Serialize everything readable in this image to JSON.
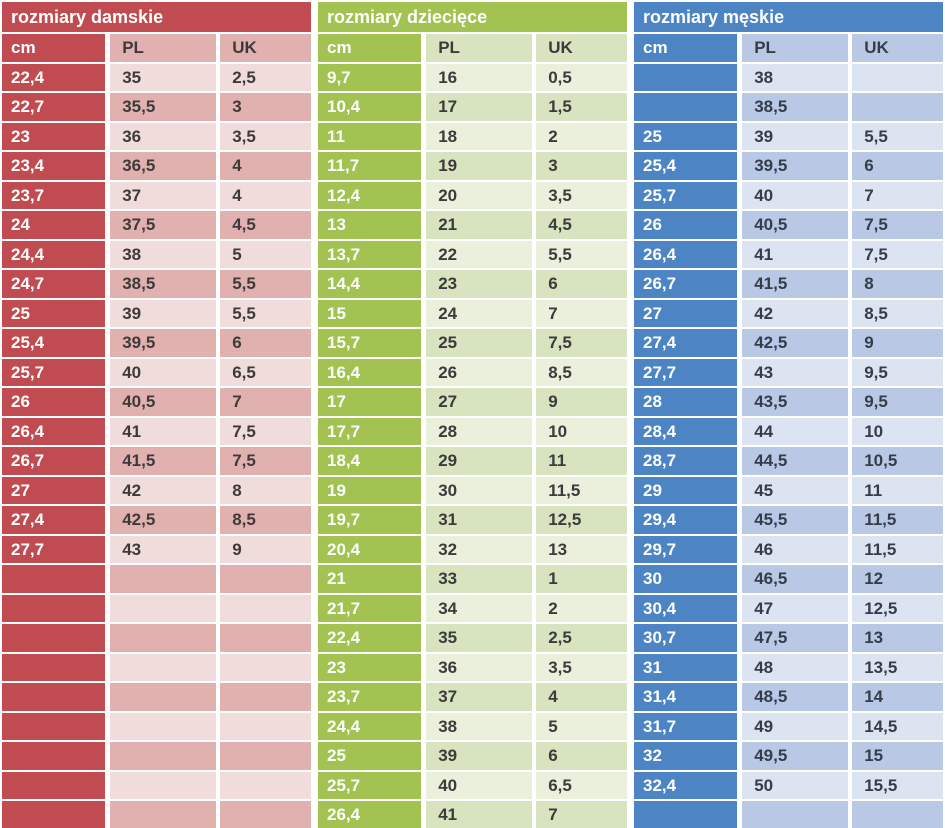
{
  "chart_data": [
    {
      "type": "table",
      "title": "rozmiary damskie",
      "columns": [
        "cm",
        "PL",
        "UK"
      ],
      "theme": {
        "strong": "#c04b51",
        "row_light": "#f0dcda",
        "row_dark": "#e1b1af",
        "on_strong": "#ffffff",
        "value_text": "#3e3a3b"
      },
      "rows": [
        [
          "22,4",
          "35",
          "2,5"
        ],
        [
          "22,7",
          "35,5",
          "3"
        ],
        [
          "23",
          "36",
          "3,5"
        ],
        [
          "23,4",
          "36,5",
          "4"
        ],
        [
          "23,7",
          "37",
          "4"
        ],
        [
          "24",
          "37,5",
          "4,5"
        ],
        [
          "24,4",
          "38",
          "5"
        ],
        [
          "24,7",
          "38,5",
          "5,5"
        ],
        [
          "25",
          "39",
          "5,5"
        ],
        [
          "25,4",
          "39,5",
          "6"
        ],
        [
          "25,7",
          "40",
          "6,5"
        ],
        [
          "26",
          "40,5",
          "7"
        ],
        [
          "26,4",
          "41",
          "7,5"
        ],
        [
          "26,7",
          "41,5",
          "7,5"
        ],
        [
          "27",
          "42",
          "8"
        ],
        [
          "27,4",
          "42,5",
          "8,5"
        ],
        [
          "27,7",
          "43",
          "9"
        ],
        [
          "",
          "",
          ""
        ],
        [
          "",
          "",
          ""
        ],
        [
          "",
          "",
          ""
        ],
        [
          "",
          "",
          ""
        ],
        [
          "",
          "",
          ""
        ],
        [
          "",
          "",
          ""
        ],
        [
          "",
          "",
          ""
        ],
        [
          "",
          "",
          ""
        ],
        [
          "",
          "",
          ""
        ]
      ]
    },
    {
      "type": "table",
      "title": "rozmiary dziecięce",
      "columns": [
        "cm",
        "PL",
        "UK"
      ],
      "theme": {
        "strong": "#a2c252",
        "row_light": "#eaf0dc",
        "row_dark": "#d8e4c0",
        "on_strong": "#ffffff",
        "value_text": "#3e3a3b"
      },
      "rows": [
        [
          "9,7",
          "16",
          "0,5"
        ],
        [
          "10,4",
          "17",
          "1,5"
        ],
        [
          "11",
          "18",
          "2"
        ],
        [
          "11,7",
          "19",
          "3"
        ],
        [
          "12,4",
          "20",
          "3,5"
        ],
        [
          "13",
          "21",
          "4,5"
        ],
        [
          "13,7",
          "22",
          "5,5"
        ],
        [
          "14,4",
          "23",
          "6"
        ],
        [
          "15",
          "24",
          "7"
        ],
        [
          "15,7",
          "25",
          "7,5"
        ],
        [
          "16,4",
          "26",
          "8,5"
        ],
        [
          "17",
          "27",
          "9"
        ],
        [
          "17,7",
          "28",
          "10"
        ],
        [
          "18,4",
          "29",
          "11"
        ],
        [
          "19",
          "30",
          "11,5"
        ],
        [
          "19,7",
          "31",
          "12,5"
        ],
        [
          "20,4",
          "32",
          "13"
        ],
        [
          "21",
          "33",
          "1"
        ],
        [
          "21,7",
          "34",
          "2"
        ],
        [
          "22,4",
          "35",
          "2,5"
        ],
        [
          "23",
          "36",
          "3,5"
        ],
        [
          "23,7",
          "37",
          "4"
        ],
        [
          "24,4",
          "38",
          "5"
        ],
        [
          "25",
          "39",
          "6"
        ],
        [
          "25,7",
          "40",
          "6,5"
        ],
        [
          "26,4",
          "41",
          "7"
        ]
      ]
    },
    {
      "type": "table",
      "title": "rozmiary męskie",
      "columns": [
        "cm",
        "PL",
        "UK"
      ],
      "theme": {
        "strong": "#4d84c4",
        "row_light": "#dce4f1",
        "row_dark": "#b9c9e5",
        "on_strong": "#ffffff",
        "value_text": "#363c4a"
      },
      "rows": [
        [
          "",
          "38",
          ""
        ],
        [
          "",
          "38,5",
          ""
        ],
        [
          "25",
          "39",
          "5,5"
        ],
        [
          "25,4",
          "39,5",
          "6"
        ],
        [
          "25,7",
          "40",
          "7"
        ],
        [
          "26",
          "40,5",
          "7,5"
        ],
        [
          "26,4",
          "41",
          "7,5"
        ],
        [
          "26,7",
          "41,5",
          "8"
        ],
        [
          "27",
          "42",
          "8,5"
        ],
        [
          "27,4",
          "42,5",
          "9"
        ],
        [
          "27,7",
          "43",
          "9,5"
        ],
        [
          "28",
          "43,5",
          "9,5"
        ],
        [
          "28,4",
          "44",
          "10"
        ],
        [
          "28,7",
          "44,5",
          "10,5"
        ],
        [
          "29",
          "45",
          "11"
        ],
        [
          "29,4",
          "45,5",
          "11,5"
        ],
        [
          "29,7",
          "46",
          "11,5"
        ],
        [
          "30",
          "46,5",
          "12"
        ],
        [
          "30,4",
          "47",
          "12,5"
        ],
        [
          "30,7",
          "47,5",
          "13"
        ],
        [
          "31",
          "48",
          "13,5"
        ],
        [
          "31,4",
          "48,5",
          "14"
        ],
        [
          "31,7",
          "49",
          "14,5"
        ],
        [
          "32",
          "49,5",
          "15"
        ],
        [
          "32,4",
          "50",
          "15,5"
        ],
        [
          "",
          "",
          ""
        ]
      ]
    }
  ]
}
